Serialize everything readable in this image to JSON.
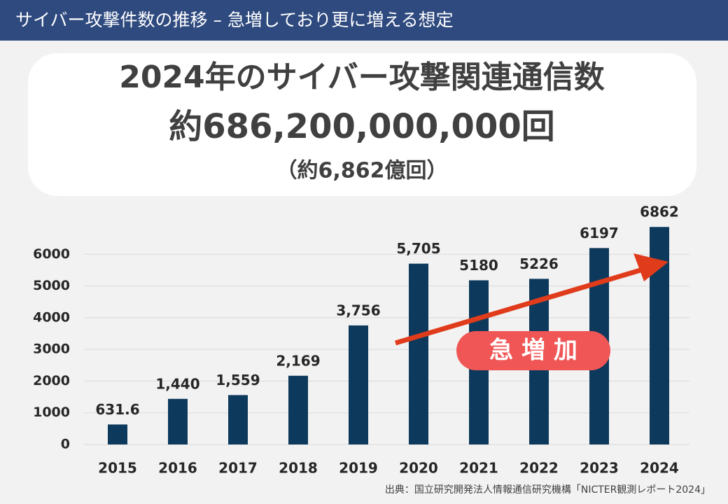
{
  "header": "サイバー攻撃件数の推移 – 急増しており更に増える想定",
  "headline": {
    "line1": "2024年のサイバー攻撃関連通信数",
    "line2": "約686,200,000,000回",
    "line3": "（約6,862億回）"
  },
  "chart_data": {
    "type": "bar",
    "categories": [
      "2015",
      "2016",
      "2017",
      "2018",
      "2019",
      "2020",
      "2021",
      "2022",
      "2023",
      "2024"
    ],
    "values": [
      631.6,
      1440,
      1559,
      2169,
      3756,
      5705,
      5180,
      5226,
      6197,
      6862
    ],
    "value_labels": [
      "631.6",
      "1,440",
      "1,559",
      "2,169",
      "3,756",
      "5,705",
      "5180",
      "5226",
      "6197",
      "6862"
    ],
    "color": "#0d3a5c",
    "ylim": [
      0,
      7000
    ],
    "yticks": [
      0,
      1000,
      2000,
      3000,
      4000,
      5000,
      6000
    ],
    "grid": true,
    "annotation": "急 増 加"
  },
  "source": "出典：国立研究開発法人情報通信研究機構「NICTER観測レポート2024」"
}
